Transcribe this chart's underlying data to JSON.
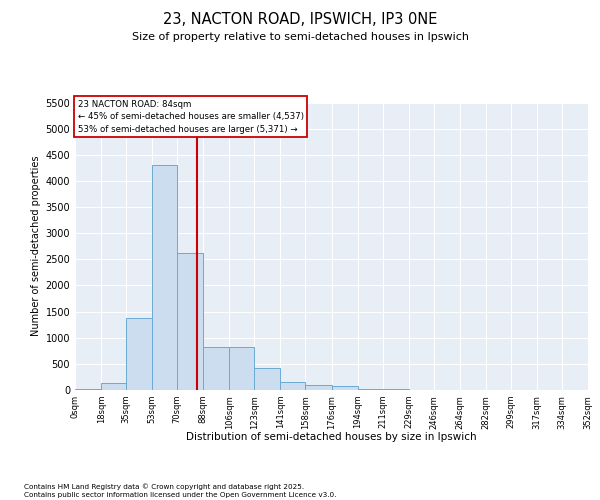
{
  "title1": "23, NACTON ROAD, IPSWICH, IP3 0NE",
  "title2": "Size of property relative to semi-detached houses in Ipswich",
  "xlabel": "Distribution of semi-detached houses by size in Ipswich",
  "ylabel": "Number of semi-detached properties",
  "property_size": 84,
  "property_label": "23 NACTON ROAD: 84sqm",
  "smaller_pct": 45,
  "smaller_count": 4537,
  "larger_pct": 53,
  "larger_count": 5371,
  "bar_color": "#ccddf0",
  "bar_edge_color": "#6aaad4",
  "vline_color": "#cc0000",
  "background_color": "#e8eef6",
  "grid_color": "#ffffff",
  "bins": [
    0,
    18,
    35,
    53,
    70,
    88,
    106,
    123,
    141,
    158,
    176,
    194,
    211,
    229,
    246,
    264,
    282,
    299,
    317,
    334,
    352
  ],
  "bin_labels": [
    "0sqm",
    "18sqm",
    "35sqm",
    "53sqm",
    "70sqm",
    "88sqm",
    "106sqm",
    "123sqm",
    "141sqm",
    "158sqm",
    "176sqm",
    "194sqm",
    "211sqm",
    "229sqm",
    "246sqm",
    "264sqm",
    "282sqm",
    "299sqm",
    "317sqm",
    "334sqm",
    "352sqm"
  ],
  "counts": [
    25,
    125,
    1380,
    4300,
    2620,
    820,
    820,
    415,
    155,
    105,
    75,
    28,
    10,
    5,
    3,
    2,
    1,
    1,
    0,
    0
  ],
  "ylim": [
    0,
    5500
  ],
  "yticks": [
    0,
    500,
    1000,
    1500,
    2000,
    2500,
    3000,
    3500,
    4000,
    4500,
    5000,
    5500
  ],
  "footer1": "Contains HM Land Registry data © Crown copyright and database right 2025.",
  "footer2": "Contains public sector information licensed under the Open Government Licence v3.0."
}
